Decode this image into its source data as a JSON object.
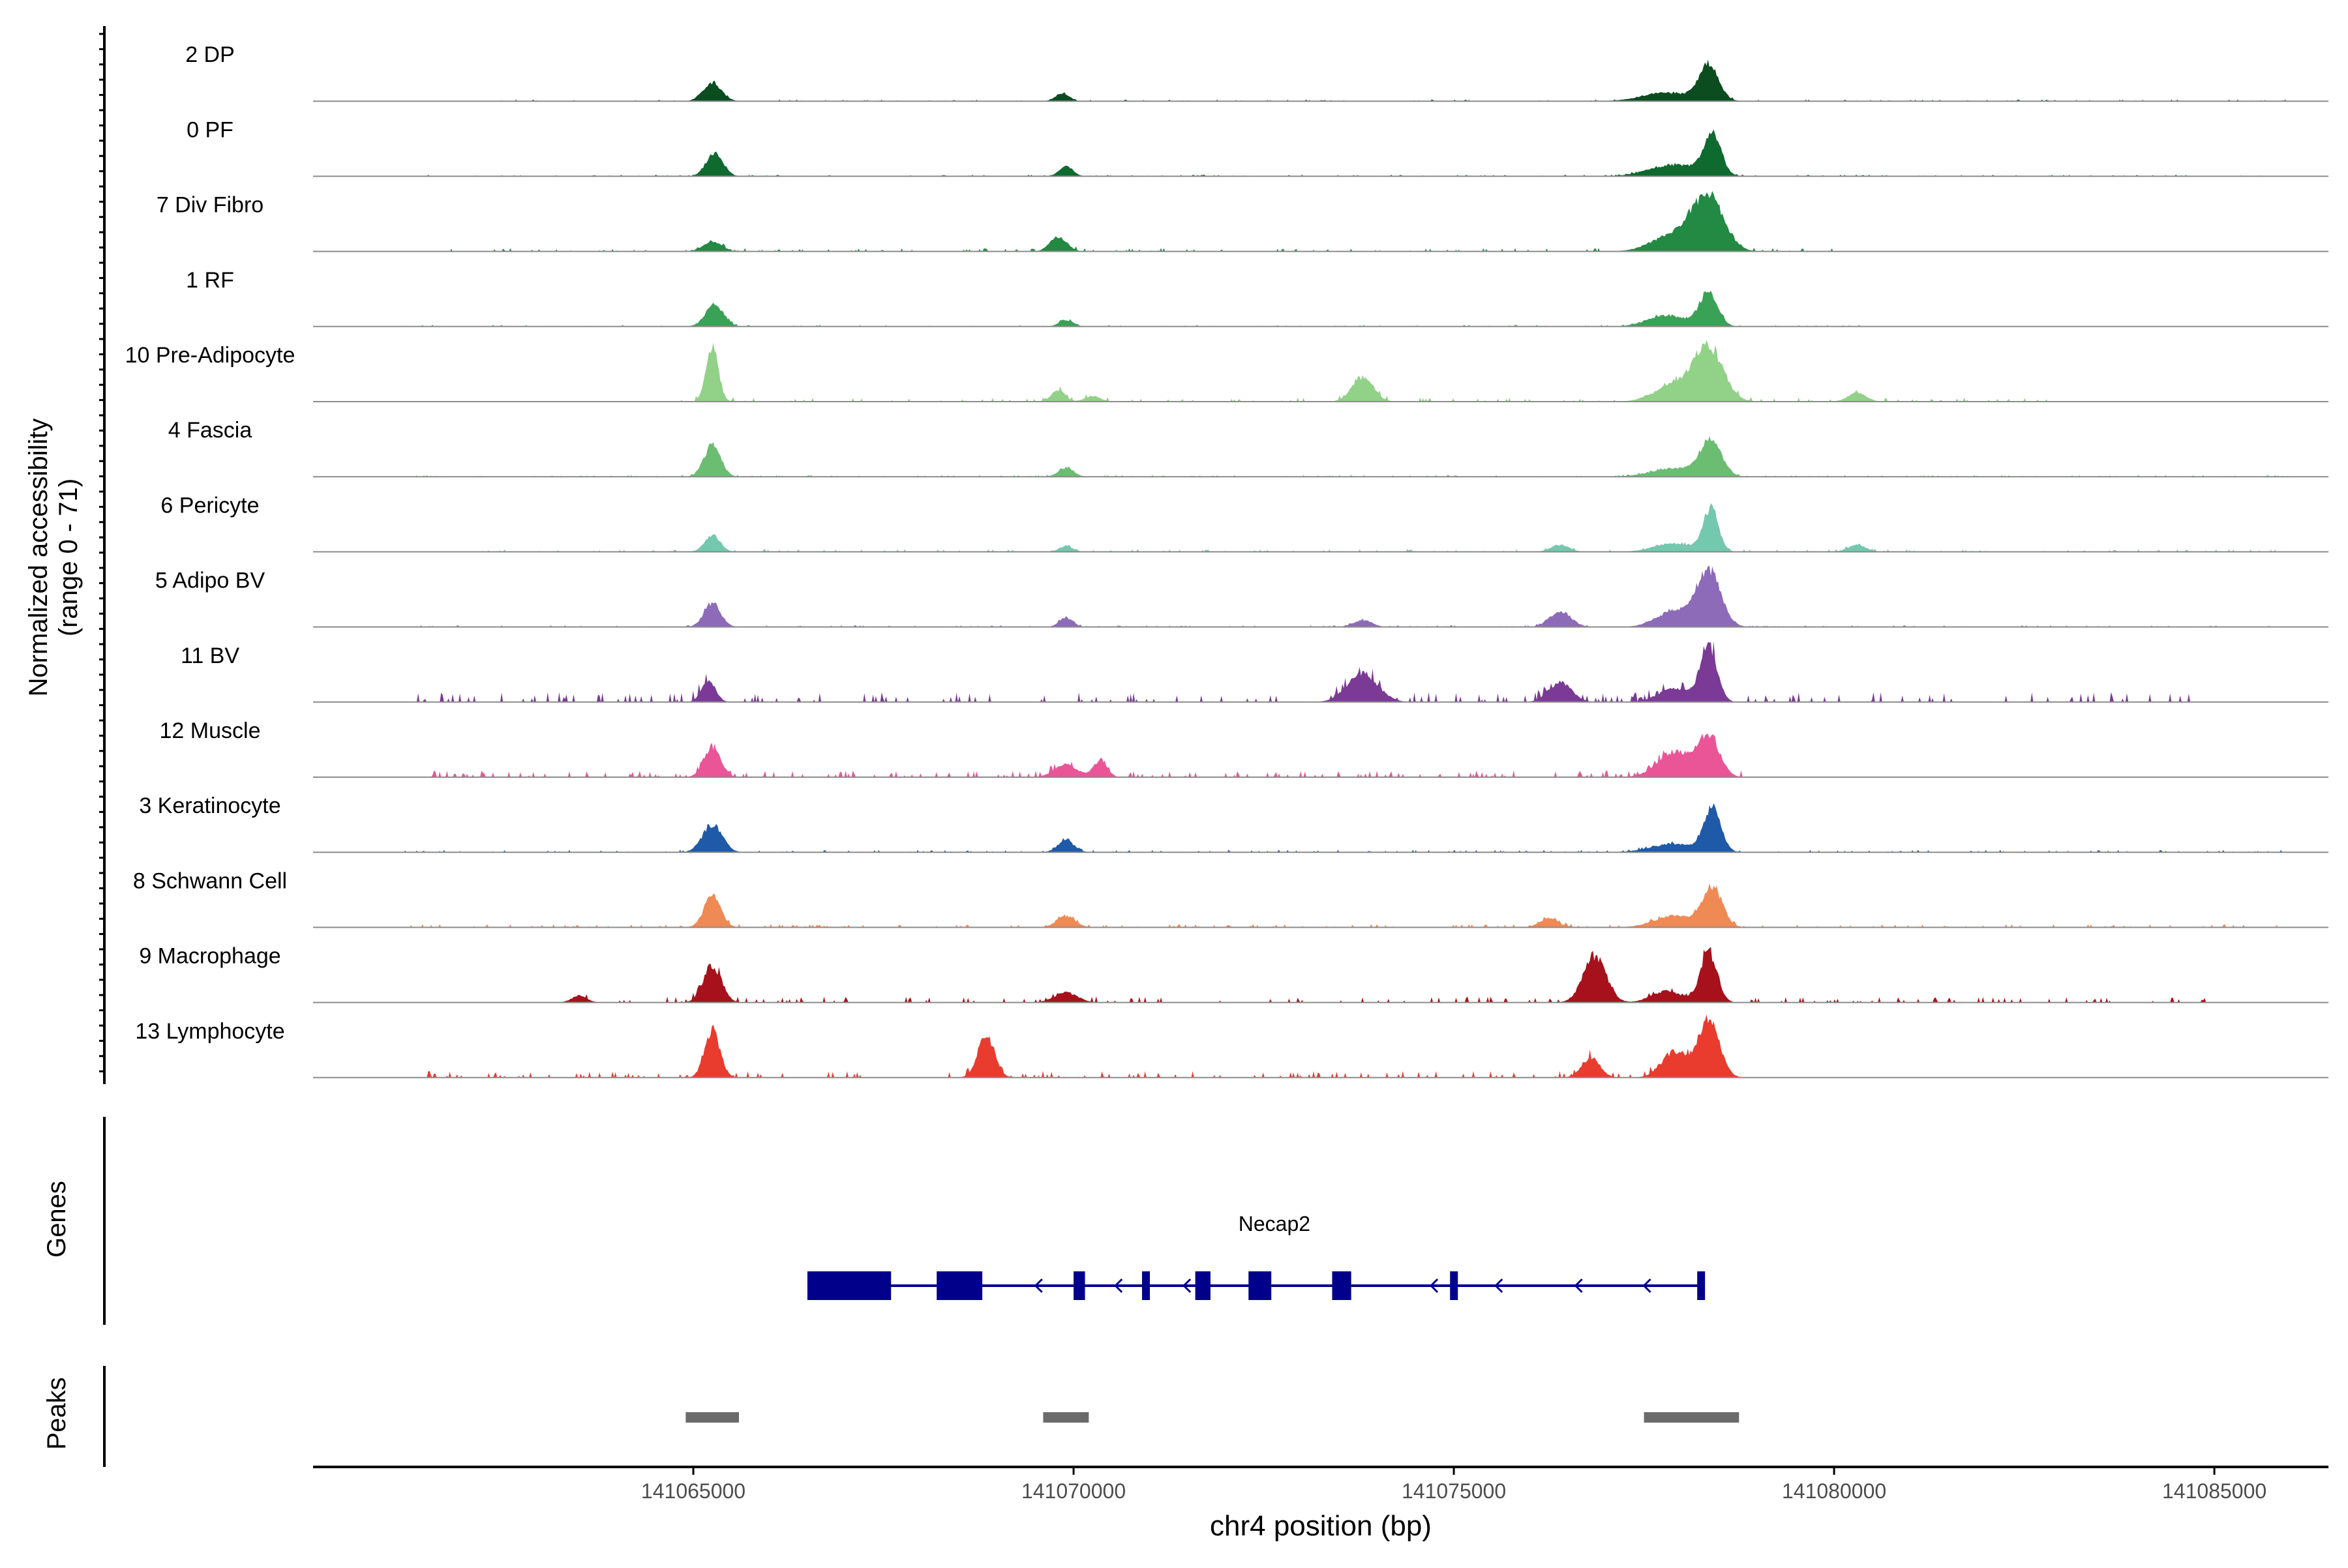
{
  "chart_data": {
    "type": "area",
    "title": "",
    "ylabel_line1": "Normalized accessibility",
    "ylabel_line2": "(range 0 - 71)",
    "y_range": [
      0,
      71
    ],
    "genes_label": "Genes",
    "peaks_label": "Peaks",
    "xlabel": "chr4 position (bp)",
    "xlim": [
      141060000,
      141086500
    ],
    "x_ticks": [
      141065000,
      141070000,
      141075000,
      141080000,
      141085000
    ],
    "x_tick_labels": [
      "141065000",
      "141070000",
      "141075000",
      "141080000",
      "141085000"
    ],
    "tracks": [
      {
        "name": "2 DP",
        "color": "#0b4d1f",
        "peaks": [
          [
            141065250,
            0.32,
            120
          ],
          [
            141069850,
            0.14,
            90
          ],
          [
            141077800,
            0.15,
            320
          ],
          [
            141078350,
            0.62,
            130
          ]
        ],
        "noise": [
          [
            141062000,
            141086000,
            0.02
          ]
        ]
      },
      {
        "name": "0 PF",
        "color": "#0e6a2f",
        "peaks": [
          [
            141065280,
            0.42,
            110
          ],
          [
            141069900,
            0.18,
            90
          ],
          [
            141077900,
            0.2,
            330
          ],
          [
            141078400,
            0.74,
            110
          ]
        ],
        "noise": [
          [
            141061500,
            141086000,
            0.02
          ]
        ]
      },
      {
        "name": "7 Div Fibro",
        "color": "#228a43",
        "peaks": [
          [
            141065250,
            0.18,
            120
          ],
          [
            141069800,
            0.26,
            110
          ],
          [
            141077900,
            0.3,
            280
          ],
          [
            141078350,
            0.95,
            200
          ]
        ],
        "noise": [
          [
            141061500,
            141080500,
            0.04
          ]
        ]
      },
      {
        "name": "1 RF",
        "color": "#3aa257",
        "peaks": [
          [
            141065280,
            0.38,
            120
          ],
          [
            141069900,
            0.12,
            90
          ],
          [
            141077800,
            0.2,
            250
          ],
          [
            141078350,
            0.6,
            120
          ]
        ],
        "noise": [
          [
            141061200,
            141080500,
            0.02
          ]
        ]
      },
      {
        "name": "10 Pre-Adipocyte",
        "color": "#92d188",
        "peaks": [
          [
            141065250,
            0.95,
            80
          ],
          [
            141069800,
            0.2,
            90
          ],
          [
            141070250,
            0.1,
            100
          ],
          [
            141073800,
            0.42,
            140
          ],
          [
            141077900,
            0.3,
            250
          ],
          [
            141078350,
            0.95,
            190
          ],
          [
            141080300,
            0.15,
            120
          ]
        ],
        "noise": [
          [
            141064800,
            141082800,
            0.05
          ]
        ]
      },
      {
        "name": "4 Fascia",
        "color": "#6bbd72",
        "peaks": [
          [
            141065250,
            0.55,
            110
          ],
          [
            141069900,
            0.16,
            100
          ],
          [
            141077900,
            0.15,
            300
          ],
          [
            141078380,
            0.62,
            140
          ]
        ],
        "noise": [
          [
            141061200,
            141086000,
            0.02
          ]
        ]
      },
      {
        "name": "6 Pericyte",
        "color": "#73c8ad",
        "peaks": [
          [
            141065250,
            0.3,
            100
          ],
          [
            141069900,
            0.1,
            90
          ],
          [
            141076400,
            0.12,
            120
          ],
          [
            141077900,
            0.15,
            260
          ],
          [
            141078380,
            0.75,
            100
          ],
          [
            141080300,
            0.12,
            120
          ]
        ],
        "noise": [
          [
            141062200,
            141085800,
            0.03
          ]
        ]
      },
      {
        "name": "5 Adipo BV",
        "color": "#8d6bb8",
        "peaks": [
          [
            141065250,
            0.42,
            110
          ],
          [
            141069900,
            0.16,
            90
          ],
          [
            141073800,
            0.12,
            120
          ],
          [
            141076400,
            0.28,
            140
          ],
          [
            141077900,
            0.28,
            230
          ],
          [
            141078350,
            0.95,
            160
          ]
        ],
        "noise": [
          [
            141061200,
            141086000,
            0.02
          ]
        ]
      },
      {
        "name": "11 BV",
        "color": "#7a3a96",
        "peaks": [
          [
            141065200,
            0.4,
            90
          ],
          [
            141073800,
            0.5,
            200
          ],
          [
            141076400,
            0.35,
            150
          ],
          [
            141077900,
            0.25,
            200
          ],
          [
            141078350,
            1.0,
            110
          ]
        ],
        "noise": [
          [
            141061200,
            141085400,
            0.12
          ]
        ]
      },
      {
        "name": "12 Muscle",
        "color": "#ea5598",
        "peaks": [
          [
            141065250,
            0.55,
            110
          ],
          [
            141069900,
            0.22,
            150
          ],
          [
            141070350,
            0.28,
            90
          ],
          [
            141077900,
            0.45,
            220
          ],
          [
            141078350,
            0.72,
            140
          ]
        ],
        "noise": [
          [
            141061400,
            141078800,
            0.08
          ]
        ]
      },
      {
        "name": "3 Keratinocyte",
        "color": "#1f5aa8",
        "peaks": [
          [
            141065250,
            0.48,
            130
          ],
          [
            141069900,
            0.2,
            110
          ],
          [
            141077900,
            0.15,
            300
          ],
          [
            141078400,
            0.75,
            110
          ]
        ],
        "noise": [
          [
            141061200,
            141086000,
            0.03
          ]
        ]
      },
      {
        "name": "8 Schwann Cell",
        "color": "#f08a55",
        "peaks": [
          [
            141065250,
            0.55,
            110
          ],
          [
            141069900,
            0.2,
            120
          ],
          [
            141076250,
            0.16,
            120
          ],
          [
            141077900,
            0.2,
            260
          ],
          [
            141078400,
            0.7,
            130
          ]
        ],
        "noise": [
          [
            141061200,
            141086000,
            0.04
          ]
        ]
      },
      {
        "name": "9 Macrophage",
        "color": "#a7111b",
        "peaks": [
          [
            141063500,
            0.12,
            100
          ],
          [
            141065250,
            0.65,
            120
          ],
          [
            141069900,
            0.18,
            150
          ],
          [
            141076850,
            0.82,
            150
          ],
          [
            141077800,
            0.2,
            200
          ],
          [
            141078350,
            0.9,
            110
          ]
        ],
        "noise": [
          [
            141063300,
            141085000,
            0.07
          ]
        ]
      },
      {
        "name": "13 Lymphocyte",
        "color": "#e93b2e",
        "peaks": [
          [
            141065250,
            0.85,
            100
          ],
          [
            141068850,
            0.75,
            110
          ],
          [
            141076800,
            0.35,
            120
          ],
          [
            141077900,
            0.45,
            170
          ],
          [
            141078350,
            1.0,
            140
          ]
        ],
        "noise": [
          [
            141061500,
            141078500,
            0.08
          ]
        ]
      }
    ],
    "gene": {
      "name": "Necap2",
      "color": "#00008b",
      "start": 141066500,
      "end": 141078300,
      "strand": "-",
      "exons": [
        [
          141066500,
          141067600
        ],
        [
          141068200,
          141068800
        ],
        [
          141070000,
          141070150
        ],
        [
          141070900,
          141070950
        ],
        [
          141071600,
          141071800
        ],
        [
          141072300,
          141072600
        ],
        [
          141073400,
          141073650
        ],
        [
          141074950,
          141075050
        ],
        [
          141078200,
          141078300
        ]
      ],
      "arrows": [
        141069500,
        141070550,
        141071450,
        141074700,
        141075550,
        141076600,
        141077500
      ]
    },
    "peak_regions": {
      "color": "#6b6b6b",
      "regions": [
        [
          141064900,
          141065600
        ],
        [
          141069600,
          141070200
        ],
        [
          141077500,
          141078750
        ]
      ]
    }
  }
}
